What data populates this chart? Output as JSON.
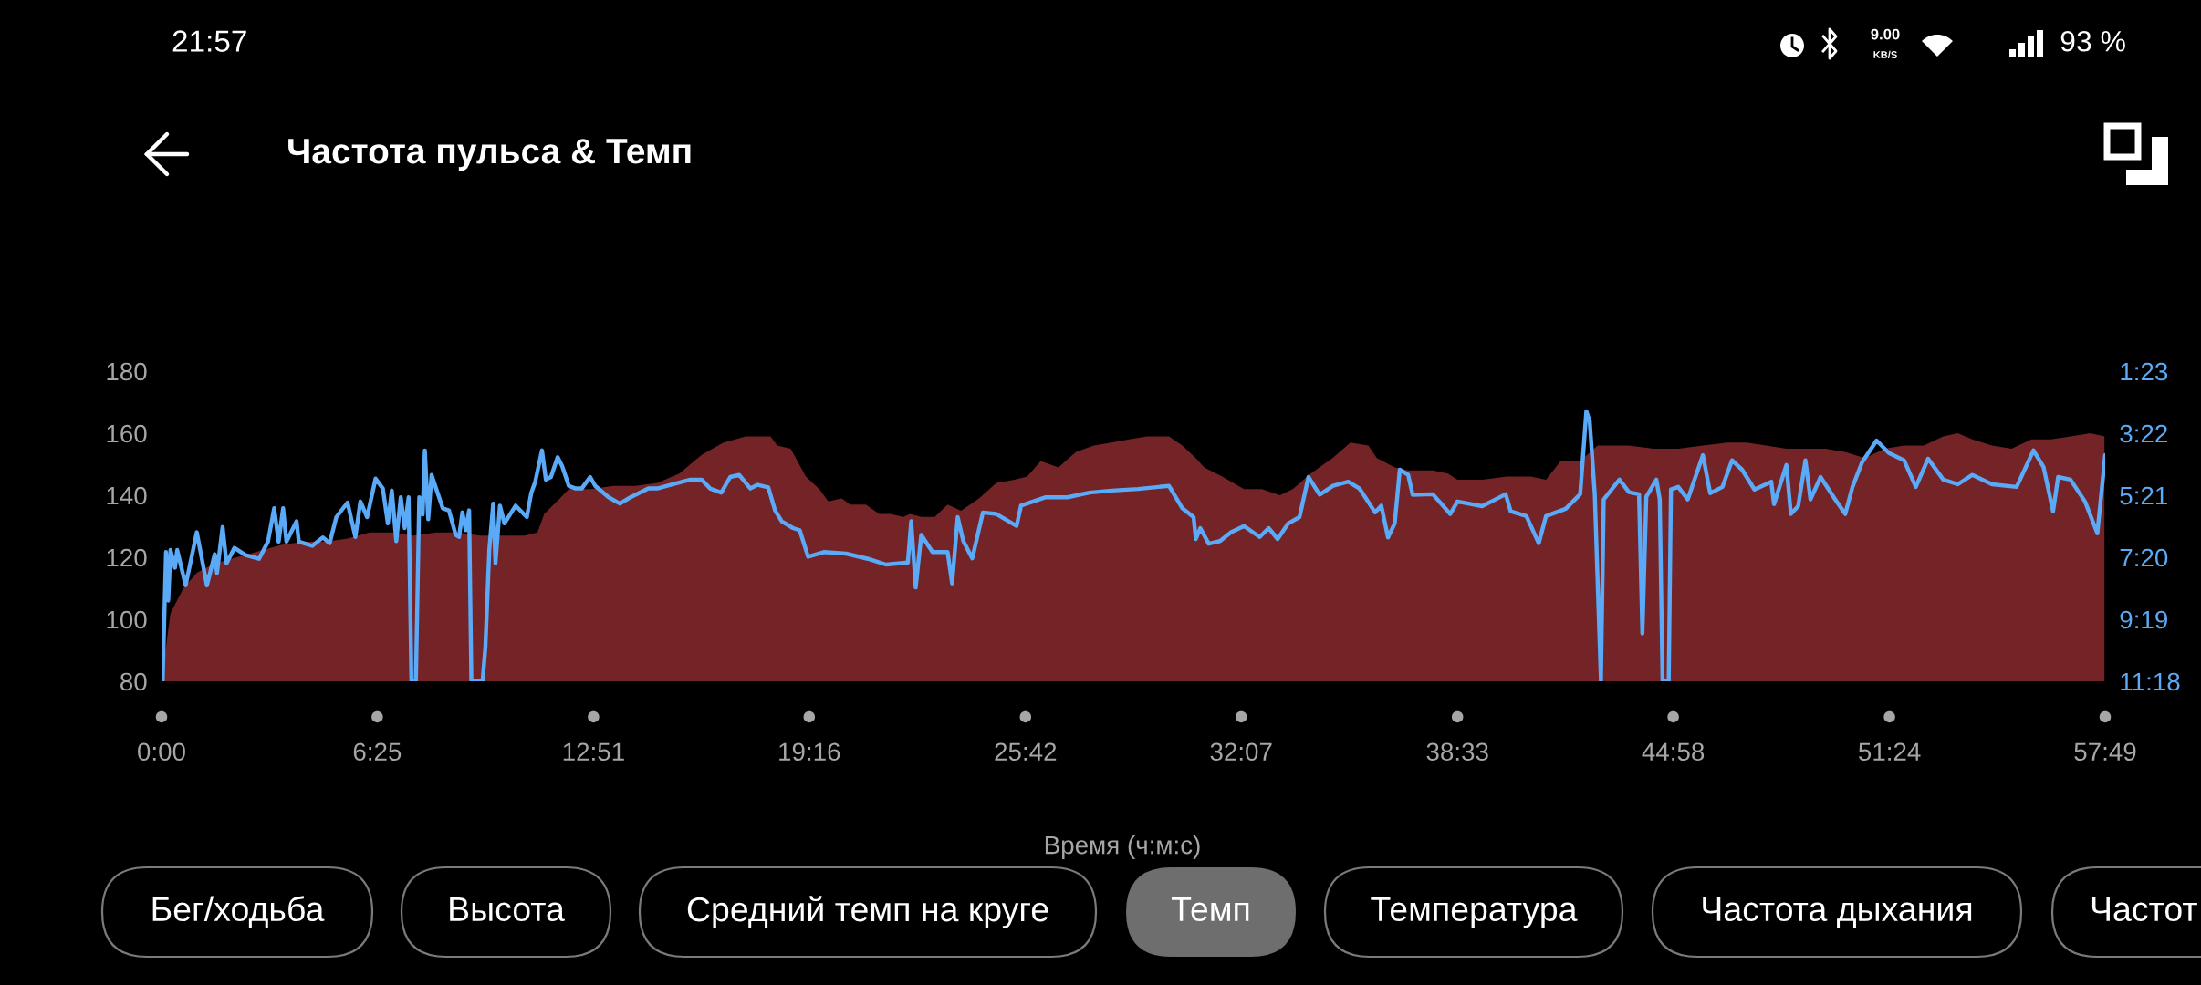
{
  "chart_data": {
    "type": "area",
    "title": "Частота пульса & Темп",
    "xlabel": "Время (ч:м:с)",
    "xlim": [
      0,
      3469
    ],
    "xticks": [
      {
        "value": 0,
        "label": "0:00"
      },
      {
        "value": 385,
        "label": "6:25"
      },
      {
        "value": 771,
        "label": "12:51"
      },
      {
        "value": 1156,
        "label": "19:16"
      },
      {
        "value": 1542,
        "label": "25:42"
      },
      {
        "value": 1927,
        "label": "32:07"
      },
      {
        "value": 2313,
        "label": "38:33"
      },
      {
        "value": 2698,
        "label": "44:58"
      },
      {
        "value": 3084,
        "label": "51:24"
      },
      {
        "value": 3469,
        "label": "57:49"
      }
    ],
    "ylim": [
      80,
      180
    ],
    "yticks": [
      80,
      100,
      120,
      140,
      160,
      180
    ],
    "y2lim": [
      678,
      83
    ],
    "y2ticks": [
      {
        "value": 83,
        "label": "1:23"
      },
      {
        "value": 202,
        "label": "3:22"
      },
      {
        "value": 321,
        "label": "5:21"
      },
      {
        "value": 440,
        "label": "7:20"
      },
      {
        "value": 559,
        "label": "9:19"
      },
      {
        "value": 678,
        "label": "11:18"
      }
    ],
    "series": [
      {
        "color": "#742326",
        "x": [
          0,
          8,
          16,
          39,
          63,
          95,
          134,
          174,
          213,
          253,
          292,
          332,
          371,
          411,
          450,
          490,
          529,
          569,
          608,
          648,
          671,
          683,
          711,
          727,
          766,
          806,
          845,
          885,
          924,
          964,
          1003,
          1043,
          1064,
          1087,
          1099,
          1123,
          1150,
          1174,
          1190,
          1214,
          1229,
          1257,
          1281,
          1301,
          1324,
          1336,
          1356,
          1380,
          1403,
          1427,
          1459,
          1490,
          1522,
          1545,
          1569,
          1601,
          1632,
          1664,
          1695,
          1727,
          1759,
          1798,
          1822,
          1846,
          1861,
          1893,
          1932,
          1964,
          1996,
          2019,
          2051,
          2090,
          2122,
          2154,
          2169,
          2201,
          2225,
          2269,
          2296,
          2313,
          2357,
          2401,
          2444,
          2471,
          2497,
          2532,
          2563,
          2619,
          2663,
          2707,
          2751,
          2795,
          2829,
          2864,
          2900,
          2934,
          2970,
          3004,
          3040,
          3075,
          3110,
          3145,
          3180,
          3206,
          3232,
          3267,
          3302,
          3337,
          3372,
          3407,
          3442,
          3469
        ],
        "values": [
          80,
          91,
          102,
          110,
          115,
          118,
          120,
          122,
          124,
          125,
          125,
          126,
          128,
          128,
          127,
          128,
          128,
          127,
          127,
          127,
          128,
          134,
          139,
          142,
          142,
          143,
          143,
          144,
          147,
          153,
          157,
          159,
          159,
          159,
          156,
          155,
          146,
          142,
          138,
          139,
          137,
          137,
          134,
          134,
          133,
          134,
          133,
          133,
          137,
          135,
          139,
          144,
          145,
          146,
          151,
          149,
          154,
          156,
          157,
          158,
          159,
          159,
          156,
          152,
          149,
          146,
          142,
          142,
          140,
          142,
          147,
          152,
          157,
          156,
          152,
          149,
          148,
          148,
          147,
          145,
          145,
          146,
          146,
          145,
          151,
          151,
          156,
          156,
          155,
          155,
          156,
          157,
          157,
          156,
          155,
          155,
          155,
          154,
          152,
          155,
          156,
          156,
          159,
          160,
          158,
          156,
          155,
          158,
          158,
          159,
          160,
          159
        ]
      },
      {
        "type": "line",
        "axis": "y2",
        "color": "#5aaaf7",
        "x": [
          2,
          8,
          12,
          16,
          24,
          28,
          43,
          63,
          81,
          95,
          99,
          109,
          116,
          130,
          150,
          174,
          190,
          201,
          209,
          217,
          223,
          241,
          245,
          269,
          288,
          300,
          312,
          332,
          346,
          355,
          367,
          382,
          395,
          404,
          411,
          419,
          427,
          434,
          441,
          446,
          454,
          460,
          466,
          470,
          476,
          482,
          490,
          502,
          513,
          525,
          531,
          537,
          543,
          549,
          553,
          573,
          578,
          585,
          592,
          596,
          604,
          612,
          632,
          652,
          660,
          667,
          679,
          686,
          695,
          707,
          715,
          727,
          739,
          750,
          765,
          774,
          798,
          818,
          837,
          869,
          885,
          916,
          944,
          964,
          979,
          999,
          1015,
          1031,
          1051,
          1064,
          1083,
          1095,
          1107,
          1127,
          1139,
          1154,
          1182,
          1222,
          1261,
          1293,
          1332,
          1338,
          1346,
          1356,
          1376,
          1403,
          1411,
          1421,
          1431,
          1447,
          1466,
          1490,
          1526,
          1534,
          1577,
          1617,
          1656,
          1696,
          1743,
          1798,
          1822,
          1842,
          1846,
          1854,
          1869,
          1889,
          1909,
          1932,
          1960,
          1976,
          1992,
          2011,
          2031,
          2047,
          2067,
          2091,
          2118,
          2138,
          2166,
          2177,
          2189,
          2201,
          2210,
          2225,
          2233,
          2269,
          2300,
          2313,
          2357,
          2399,
          2408,
          2436,
          2458,
          2471,
          2506,
          2532,
          2543,
          2549,
          2558,
          2569,
          2574,
          2602,
          2619,
          2637,
          2643,
          2650,
          2668,
          2674,
          2679,
          2690,
          2694,
          2707,
          2724,
          2751,
          2764,
          2786,
          2803,
          2821,
          2843,
          2873,
          2878,
          2900,
          2908,
          2921,
          2934,
          2943,
          2961,
          2987,
          3005,
          3018,
          3035,
          3061,
          3083,
          3110,
          3131,
          3153,
          3180,
          3206,
          3232,
          3267,
          3311,
          3341,
          3359,
          3376,
          3385,
          3407,
          3433,
          3455,
          3469
        ],
        "values": [
          678,
          430,
          523,
          426,
          460,
          426,
          494,
          392,
          494,
          434,
          470,
          382,
          452,
          422,
          436,
          443,
          410,
          346,
          410,
          346,
          410,
          371,
          410,
          418,
          402,
          413,
          363,
          335,
          401,
          333,
          363,
          289,
          308,
          375,
          312,
          409,
          325,
          384,
          325,
          678,
          678,
          325,
          358,
          235,
          367,
          282,
          308,
          346,
          350,
          397,
          401,
          354,
          388,
          350,
          678,
          678,
          613,
          426,
          337,
          452,
          341,
          375,
          341,
          363,
          316,
          295,
          235,
          291,
          286,
          248,
          265,
          303,
          308,
          308,
          286,
          303,
          325,
          337,
          325,
          308,
          308,
          299,
          291,
          291,
          308,
          316,
          286,
          282,
          308,
          301,
          306,
          350,
          371,
          384,
          388,
          439,
          430,
          433,
          443,
          454,
          450,
          371,
          498,
          397,
          430,
          430,
          490,
          363,
          409,
          442,
          354,
          357,
          380,
          341,
          325,
          325,
          316,
          312,
          309,
          303,
          346,
          363,
          405,
          384,
          414,
          409,
          392,
          380,
          401,
          384,
          405,
          375,
          363,
          286,
          320,
          303,
          295,
          308,
          354,
          341,
          402,
          375,
          272,
          282,
          320,
          319,
          357,
          333,
          342,
          319,
          352,
          361,
          413,
          361,
          347,
          319,
          160,
          179,
          319,
          678,
          329,
          291,
          315,
          319,
          586,
          324,
          291,
          329,
          678,
          678,
          310,
          305,
          329,
          244,
          317,
          305,
          254,
          272,
          310,
          295,
          338,
          263,
          357,
          342,
          254,
          329,
          286,
          329,
          357,
          305,
          258,
          216,
          240,
          254,
          305,
          251,
          291,
          300,
          282,
          300,
          305,
          235,
          267,
          352,
          286,
          291,
          333,
          394,
          244
        ]
      }
    ],
    "annotations": [
      "21:57",
      "9.00",
      "KB/S",
      "93 %",
      "Бег/ходьба",
      "Высота",
      "Средний темп на круге",
      "Темп",
      "Температура",
      "Частота дыхания",
      "Частот"
    ]
  }
}
